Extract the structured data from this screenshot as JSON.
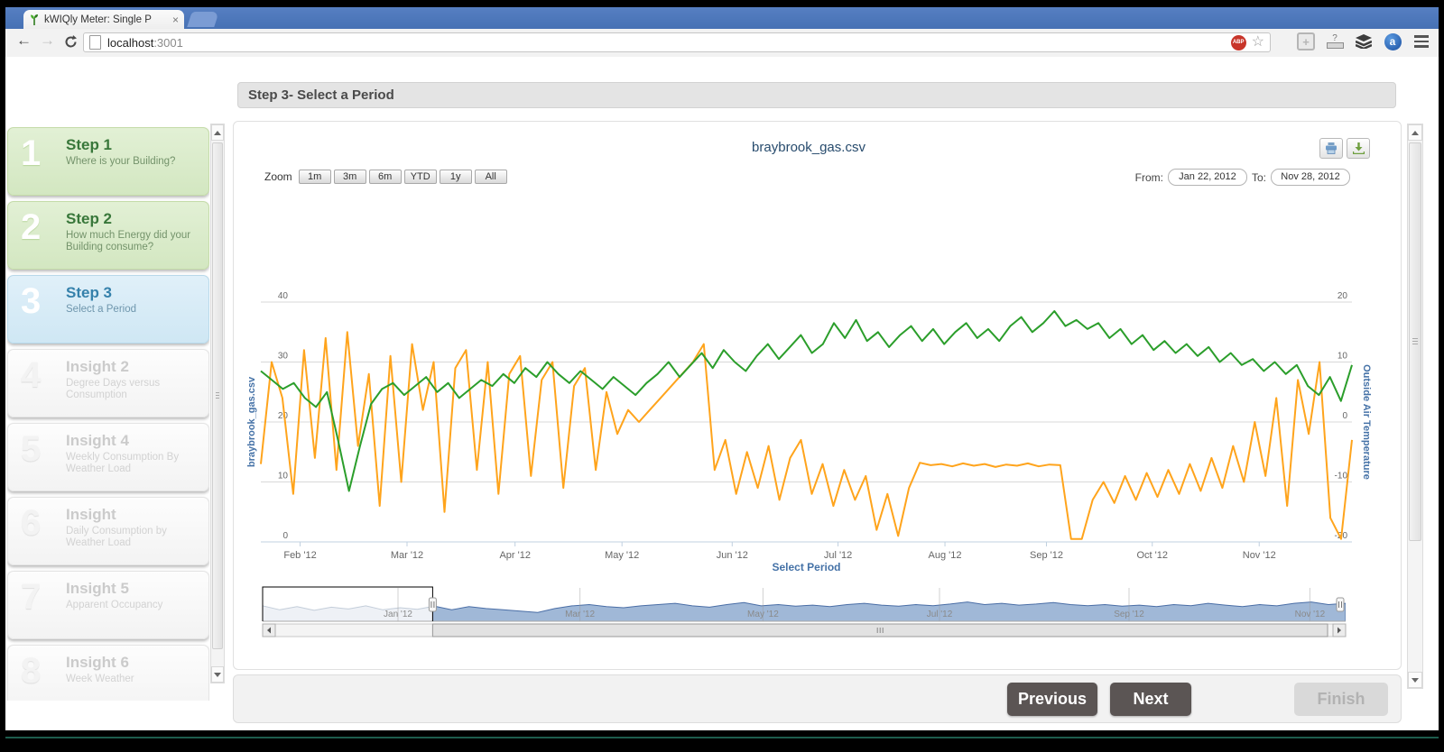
{
  "browser": {
    "tab_title": "kWIQly Meter: Single P",
    "close_glyph": "×",
    "url_host": "localhost",
    "url_port": ":3001",
    "abp_label": "ABP",
    "a_badge": "a",
    "question_glyph": "?",
    "plus_glyph": "+"
  },
  "wizard_header": "Step 3- Select a Period",
  "sidebar": {
    "items": [
      {
        "number": "1",
        "title": "Step 1",
        "subtitle": "Where is your Building?",
        "state": "completed"
      },
      {
        "number": "2",
        "title": "Step 2",
        "subtitle": "How much Energy did your Building consume?",
        "state": "completed"
      },
      {
        "number": "3",
        "title": "Step 3",
        "subtitle": "Select a Period",
        "state": "active"
      },
      {
        "number": "4",
        "title": "Insight 2",
        "subtitle": "Degree Days versus Consumption",
        "state": "locked"
      },
      {
        "number": "5",
        "title": "Insight 4",
        "subtitle": "Weekly Consumption By Weather Load",
        "state": "locked"
      },
      {
        "number": "6",
        "title": "Insight",
        "subtitle": "Daily Consumption by Weather Load",
        "state": "locked"
      },
      {
        "number": "7",
        "title": "Insight 5",
        "subtitle": "Apparent Occupancy",
        "state": "locked"
      },
      {
        "number": "8",
        "title": "Insight 6",
        "subtitle": "Week Weather",
        "state": "locked"
      }
    ]
  },
  "chart_ui": {
    "zoom_label": "Zoom",
    "zoom_buttons": [
      "1m",
      "3m",
      "6m",
      "YTD",
      "1y",
      "All"
    ],
    "from_label": "From:",
    "from_value": "Jan 22, 2012",
    "to_label": "To:",
    "to_value": "Nov 28, 2012"
  },
  "chart_data": {
    "type": "line",
    "title": "braybrook_gas.csv",
    "select_period_label": "Select Period",
    "x_range": [
      "Jan 22, 2012",
      "Nov 28, 2012"
    ],
    "xlabels": [
      {
        "label": "Feb '12",
        "f": 0.036
      },
      {
        "label": "Mar '12",
        "f": 0.134
      },
      {
        "label": "Apr '12",
        "f": 0.233
      },
      {
        "label": "May '12",
        "f": 0.331
      },
      {
        "label": "Jun '12",
        "f": 0.432
      },
      {
        "label": "Jul '12",
        "f": 0.529
      },
      {
        "label": "Aug '12",
        "f": 0.627
      },
      {
        "label": "Sep '12",
        "f": 0.72
      },
      {
        "label": "Oct '12",
        "f": 0.817
      },
      {
        "label": "Nov '12",
        "f": 0.915
      }
    ],
    "yaxis_left": {
      "title": "braybrook_gas.csv",
      "ticks": [
        "0",
        "10",
        "20",
        "30",
        "40"
      ],
      "range": [
        0,
        40
      ],
      "color": "#4572A7"
    },
    "yaxis_right": {
      "title": "Outside Air Temperature",
      "ticks": [
        "-20",
        "-10",
        "0",
        "10",
        "20"
      ],
      "range": [
        -20,
        20
      ],
      "color": "#4572A7"
    },
    "grid": true,
    "legend": "none",
    "series": [
      {
        "name": "braybrook_gas.csv",
        "axis": "left",
        "color": "#ffa41c",
        "values": [
          13,
          30,
          24,
          8,
          32,
          14,
          34,
          12,
          35,
          16,
          28,
          6,
          31,
          10,
          33,
          22,
          30,
          5,
          29,
          32,
          12,
          30,
          8,
          28,
          31,
          11,
          27,
          30,
          9,
          26,
          29,
          12,
          25,
          18,
          22,
          20,
          22,
          24,
          26,
          28,
          30,
          33,
          12,
          17,
          8,
          15,
          9,
          16,
          7,
          14,
          17,
          8,
          13,
          6,
          12,
          7,
          11,
          2,
          8,
          1,
          9,
          13.2,
          12.8,
          13,
          12.6,
          13.1,
          12.7,
          13,
          12.5,
          12.9,
          12.7,
          13.1,
          12.6,
          12.9,
          12.8,
          0.5,
          0.5,
          7,
          10,
          6.5,
          11,
          7,
          11.5,
          7.5,
          12,
          8,
          13,
          8.5,
          14,
          9,
          16,
          10,
          20,
          11,
          24,
          6,
          27,
          18,
          30,
          4,
          0.5,
          17
        ]
      },
      {
        "name": "Outside Air Temperature",
        "axis": "right",
        "color": "#2b9e2b",
        "values": [
          8.5,
          7,
          5.5,
          6.5,
          4,
          2.5,
          5,
          -3,
          -11.5,
          -4,
          3,
          5.5,
          6.5,
          4.5,
          6,
          7.5,
          5,
          6.5,
          4,
          5.5,
          7,
          6,
          8,
          6.5,
          9,
          7.5,
          10,
          8,
          6.5,
          8.5,
          7,
          5.5,
          7.5,
          6,
          4.5,
          6.5,
          8,
          10,
          7.5,
          9.5,
          11.5,
          9,
          12,
          10,
          8.5,
          11,
          13,
          10.5,
          12.5,
          14.5,
          11.5,
          13,
          16.5,
          14,
          17,
          13.5,
          15,
          12.5,
          14.5,
          16,
          13.5,
          15.5,
          13,
          15,
          16.5,
          14,
          15.5,
          13.5,
          16,
          17.5,
          15,
          16.5,
          18.5,
          16,
          17,
          15.5,
          16.5,
          14,
          15.5,
          13,
          14.5,
          12,
          13.5,
          11.5,
          13,
          11,
          12.5,
          10,
          11.5,
          9.5,
          10.5,
          8.5,
          10,
          8,
          9.5,
          6,
          4.5,
          7.5,
          3.5,
          9.5
        ]
      }
    ],
    "navigator": {
      "sel_start": 0.157,
      "sel_end": 0.995,
      "labels": [
        {
          "label": "Jan '12",
          "f": 0.125
        },
        {
          "label": "Mar '12",
          "f": 0.293
        },
        {
          "label": "May '12",
          "f": 0.462
        },
        {
          "label": "Jul '12",
          "f": 0.625
        },
        {
          "label": "Sep '12",
          "f": 0.8
        },
        {
          "label": "Nov '12",
          "f": 0.967
        }
      ],
      "values": [
        0.45,
        0.3,
        0.42,
        0.28,
        0.4,
        0.33,
        0.45,
        0.3,
        0.38,
        0.32,
        0.44,
        0.3,
        0.42,
        0.35,
        0.3,
        0.25,
        0.2,
        0.35,
        0.45,
        0.5,
        0.42,
        0.38,
        0.45,
        0.5,
        0.55,
        0.45,
        0.4,
        0.5,
        0.58,
        0.45,
        0.5,
        0.44,
        0.48,
        0.42,
        0.5,
        0.55,
        0.48,
        0.44,
        0.5,
        0.46,
        0.52,
        0.6,
        0.5,
        0.55,
        0.48,
        0.52,
        0.58,
        0.5,
        0.46,
        0.5,
        0.44,
        0.48,
        0.42,
        0.5,
        0.46,
        0.55,
        0.48,
        0.42,
        0.5,
        0.45,
        0.55,
        0.6,
        0.5,
        0.55
      ]
    }
  },
  "footer": {
    "previous": "Previous",
    "next": "Next",
    "finish": "Finish"
  }
}
